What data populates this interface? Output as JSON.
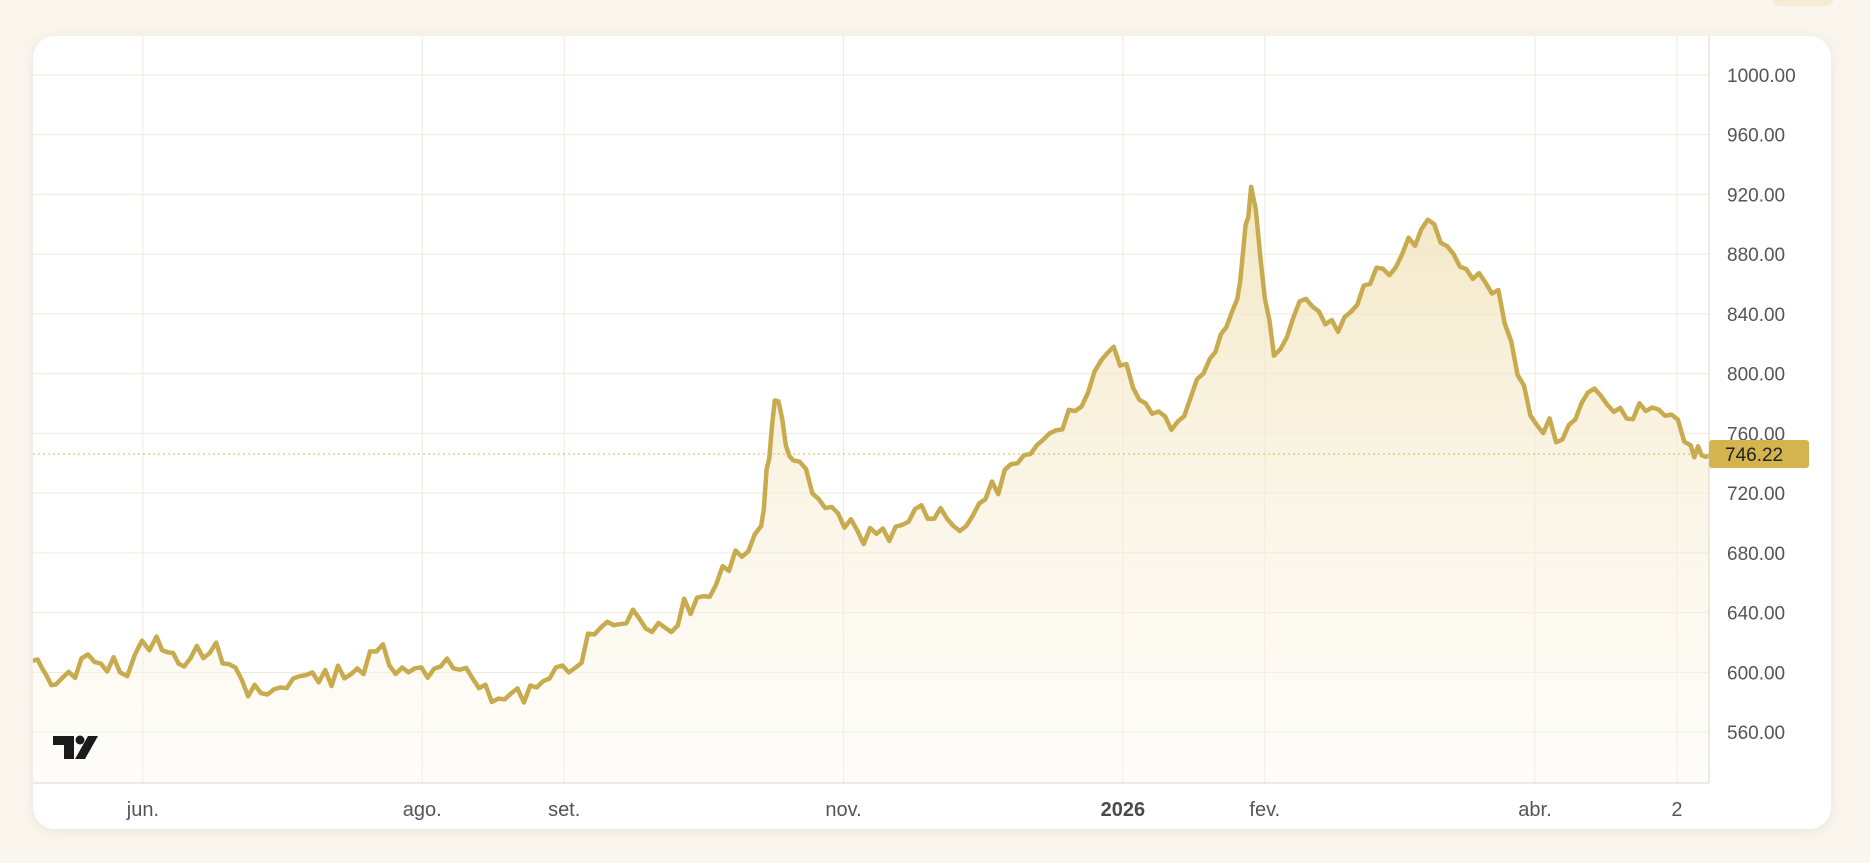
{
  "chart_data": {
    "type": "area",
    "ylim": [
      526,
      1026
    ],
    "y_ticks": [
      "560.00",
      "600.00",
      "640.00",
      "680.00",
      "720.00",
      "760.00",
      "800.00",
      "840.00",
      "880.00",
      "920.00",
      "960.00",
      "1000.00"
    ],
    "x_ticks": [
      {
        "label": "jun.",
        "date": "2025-06-01",
        "bold": false
      },
      {
        "label": "ago.",
        "date": "2025-08-01",
        "bold": false
      },
      {
        "label": "set.",
        "date": "2025-09-01",
        "bold": false
      },
      {
        "label": "nov.",
        "date": "2025-11-01",
        "bold": false
      },
      {
        "label": "2026",
        "date": "2026-01-01",
        "bold": true
      },
      {
        "label": "fev.",
        "date": "2026-02-01",
        "bold": false
      },
      {
        "label": "abr.",
        "date": "2026-04-01",
        "bold": false
      },
      {
        "label": "2",
        "date": "2026-05-02",
        "bold": false
      }
    ],
    "x_range": [
      "2025-05-08",
      "2026-05-09"
    ],
    "current_value": "746.22",
    "grid": true,
    "colors": {
      "line": "#c9ab4f",
      "fill": "#f1e3bc",
      "label_bg": "#d3b44e",
      "grid": "#efe9dc"
    },
    "logo_icon": "tradingview-logo",
    "series": [
      {
        "x": [
          "2025-05-08",
          "2025-05-13",
          "2025-05-20",
          "2025-05-27",
          "2025-06-04",
          "2025-06-10",
          "2025-06-17",
          "2025-06-24",
          "2025-07-01",
          "2025-07-08",
          "2025-07-15",
          "2025-07-22",
          "2025-07-29",
          "2025-08-05",
          "2025-08-12",
          "2025-08-19",
          "2025-08-26",
          "2025-09-02",
          "2025-09-09",
          "2025-09-16",
          "2025-09-23",
          "2025-09-30",
          "2025-10-07",
          "2025-10-14",
          "2025-10-17",
          "2025-10-21",
          "2025-10-28",
          "2025-11-04",
          "2025-11-11",
          "2025-11-18",
          "2025-11-25",
          "2025-12-02",
          "2025-12-09",
          "2025-12-16",
          "2025-12-23",
          "2025-12-30",
          "2026-01-06",
          "2026-01-13",
          "2026-01-20",
          "2026-01-26",
          "2026-01-29",
          "2026-02-03",
          "2026-02-10",
          "2026-02-17",
          "2026-02-24",
          "2026-03-03",
          "2026-03-10",
          "2026-03-17",
          "2026-03-24",
          "2026-03-31",
          "2026-04-07",
          "2026-04-14",
          "2026-04-21",
          "2026-04-28",
          "2026-05-05",
          "2026-05-09"
        ],
        "values": [
          608,
          592,
          612,
          600,
          624,
          604,
          620,
          584,
          590,
          600,
          596,
          614,
          600,
          604,
          596,
          582,
          590,
          600,
          630,
          642,
          630,
          650,
          668,
          698,
          782,
          742,
          710,
          695,
          688,
          712,
          698,
          716,
          740,
          760,
          778,
          818,
          780,
          768,
          810,
          850,
          925,
          812,
          850,
          828,
          860,
          880,
          900,
          870,
          856,
          772,
          756,
          790,
          770,
          776,
          752,
          745
        ]
      }
    ]
  }
}
